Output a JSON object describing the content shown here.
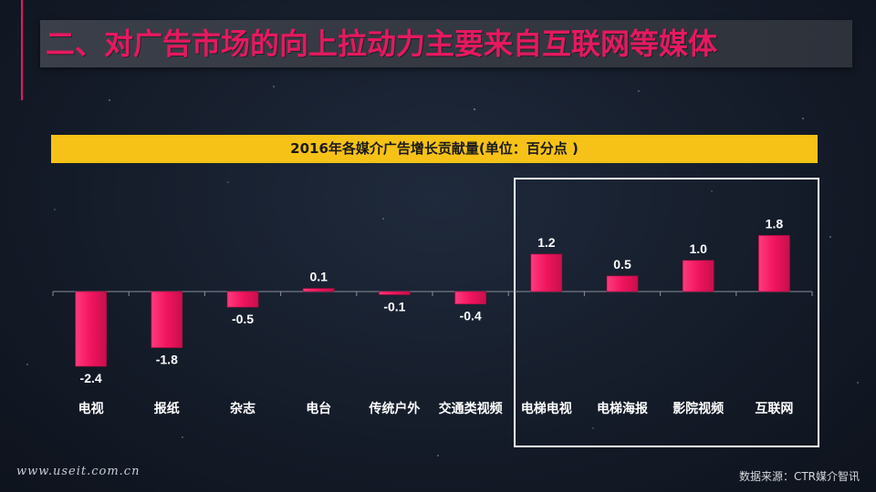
{
  "header": {
    "title": "二、对广告市场的向上拉动力主要来自互联网等媒体"
  },
  "chart_data": {
    "type": "bar",
    "title": "2016年各媒介广告增长贡献量(单位：百分点 )",
    "categories": [
      "电视",
      "报纸",
      "杂志",
      "电台",
      "传统户外",
      "交通类视频",
      "电梯电视",
      "电梯海报",
      "影院视频",
      "互联网"
    ],
    "values": [
      -2.4,
      -1.8,
      -0.5,
      0.1,
      -0.1,
      -0.4,
      1.2,
      0.5,
      1.0,
      1.8
    ],
    "value_labels": [
      "-2.4",
      "-1.8",
      "-0.5",
      "0.1",
      "-0.1",
      "-0.4",
      "1.2",
      "0.5",
      "1.0",
      "1.8"
    ],
    "bar_color": "#f0155e",
    "highlighted_categories": [
      "电梯电视",
      "电梯海报",
      "影院视频",
      "互联网"
    ],
    "grid": false,
    "legend": "none"
  },
  "footer": {
    "website": "www.useit.com.cn",
    "source": "数据来源：CTR媒介智讯"
  },
  "colors": {
    "accent": "#e5195f",
    "title_band": "#f6c217",
    "background": "#151c29"
  }
}
